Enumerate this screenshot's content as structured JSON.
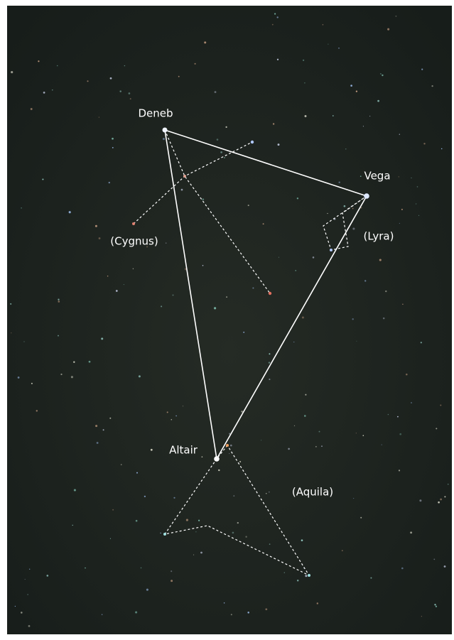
{
  "labels": [
    "Deneb",
    "Vega",
    "Altair",
    "(Cygnus)",
    "(Lyra)",
    "(Aquila)"
  ]
}
